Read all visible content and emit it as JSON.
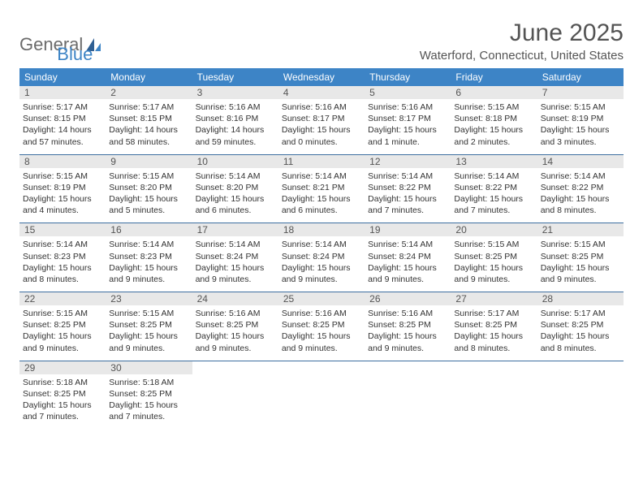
{
  "brand": {
    "general": "General",
    "blue": "Blue"
  },
  "title": "June 2025",
  "location": "Waterford, Connecticut, United States",
  "colors": {
    "header_bg": "#3d84c6",
    "row_border": "#3d6fa0",
    "daynum_bg": "#e8e8e8",
    "text": "#333333",
    "title_text": "#545454"
  },
  "weekdays": [
    "Sunday",
    "Monday",
    "Tuesday",
    "Wednesday",
    "Thursday",
    "Friday",
    "Saturday"
  ],
  "weeks": [
    [
      {
        "n": "1",
        "sr": "Sunrise: 5:17 AM",
        "ss": "Sunset: 8:15 PM",
        "d1": "Daylight: 14 hours",
        "d2": "and 57 minutes."
      },
      {
        "n": "2",
        "sr": "Sunrise: 5:17 AM",
        "ss": "Sunset: 8:15 PM",
        "d1": "Daylight: 14 hours",
        "d2": "and 58 minutes."
      },
      {
        "n": "3",
        "sr": "Sunrise: 5:16 AM",
        "ss": "Sunset: 8:16 PM",
        "d1": "Daylight: 14 hours",
        "d2": "and 59 minutes."
      },
      {
        "n": "4",
        "sr": "Sunrise: 5:16 AM",
        "ss": "Sunset: 8:17 PM",
        "d1": "Daylight: 15 hours",
        "d2": "and 0 minutes."
      },
      {
        "n": "5",
        "sr": "Sunrise: 5:16 AM",
        "ss": "Sunset: 8:17 PM",
        "d1": "Daylight: 15 hours",
        "d2": "and 1 minute."
      },
      {
        "n": "6",
        "sr": "Sunrise: 5:15 AM",
        "ss": "Sunset: 8:18 PM",
        "d1": "Daylight: 15 hours",
        "d2": "and 2 minutes."
      },
      {
        "n": "7",
        "sr": "Sunrise: 5:15 AM",
        "ss": "Sunset: 8:19 PM",
        "d1": "Daylight: 15 hours",
        "d2": "and 3 minutes."
      }
    ],
    [
      {
        "n": "8",
        "sr": "Sunrise: 5:15 AM",
        "ss": "Sunset: 8:19 PM",
        "d1": "Daylight: 15 hours",
        "d2": "and 4 minutes."
      },
      {
        "n": "9",
        "sr": "Sunrise: 5:15 AM",
        "ss": "Sunset: 8:20 PM",
        "d1": "Daylight: 15 hours",
        "d2": "and 5 minutes."
      },
      {
        "n": "10",
        "sr": "Sunrise: 5:14 AM",
        "ss": "Sunset: 8:20 PM",
        "d1": "Daylight: 15 hours",
        "d2": "and 6 minutes."
      },
      {
        "n": "11",
        "sr": "Sunrise: 5:14 AM",
        "ss": "Sunset: 8:21 PM",
        "d1": "Daylight: 15 hours",
        "d2": "and 6 minutes."
      },
      {
        "n": "12",
        "sr": "Sunrise: 5:14 AM",
        "ss": "Sunset: 8:22 PM",
        "d1": "Daylight: 15 hours",
        "d2": "and 7 minutes."
      },
      {
        "n": "13",
        "sr": "Sunrise: 5:14 AM",
        "ss": "Sunset: 8:22 PM",
        "d1": "Daylight: 15 hours",
        "d2": "and 7 minutes."
      },
      {
        "n": "14",
        "sr": "Sunrise: 5:14 AM",
        "ss": "Sunset: 8:22 PM",
        "d1": "Daylight: 15 hours",
        "d2": "and 8 minutes."
      }
    ],
    [
      {
        "n": "15",
        "sr": "Sunrise: 5:14 AM",
        "ss": "Sunset: 8:23 PM",
        "d1": "Daylight: 15 hours",
        "d2": "and 8 minutes."
      },
      {
        "n": "16",
        "sr": "Sunrise: 5:14 AM",
        "ss": "Sunset: 8:23 PM",
        "d1": "Daylight: 15 hours",
        "d2": "and 9 minutes."
      },
      {
        "n": "17",
        "sr": "Sunrise: 5:14 AM",
        "ss": "Sunset: 8:24 PM",
        "d1": "Daylight: 15 hours",
        "d2": "and 9 minutes."
      },
      {
        "n": "18",
        "sr": "Sunrise: 5:14 AM",
        "ss": "Sunset: 8:24 PM",
        "d1": "Daylight: 15 hours",
        "d2": "and 9 minutes."
      },
      {
        "n": "19",
        "sr": "Sunrise: 5:14 AM",
        "ss": "Sunset: 8:24 PM",
        "d1": "Daylight: 15 hours",
        "d2": "and 9 minutes."
      },
      {
        "n": "20",
        "sr": "Sunrise: 5:15 AM",
        "ss": "Sunset: 8:25 PM",
        "d1": "Daylight: 15 hours",
        "d2": "and 9 minutes."
      },
      {
        "n": "21",
        "sr": "Sunrise: 5:15 AM",
        "ss": "Sunset: 8:25 PM",
        "d1": "Daylight: 15 hours",
        "d2": "and 9 minutes."
      }
    ],
    [
      {
        "n": "22",
        "sr": "Sunrise: 5:15 AM",
        "ss": "Sunset: 8:25 PM",
        "d1": "Daylight: 15 hours",
        "d2": "and 9 minutes."
      },
      {
        "n": "23",
        "sr": "Sunrise: 5:15 AM",
        "ss": "Sunset: 8:25 PM",
        "d1": "Daylight: 15 hours",
        "d2": "and 9 minutes."
      },
      {
        "n": "24",
        "sr": "Sunrise: 5:16 AM",
        "ss": "Sunset: 8:25 PM",
        "d1": "Daylight: 15 hours",
        "d2": "and 9 minutes."
      },
      {
        "n": "25",
        "sr": "Sunrise: 5:16 AM",
        "ss": "Sunset: 8:25 PM",
        "d1": "Daylight: 15 hours",
        "d2": "and 9 minutes."
      },
      {
        "n": "26",
        "sr": "Sunrise: 5:16 AM",
        "ss": "Sunset: 8:25 PM",
        "d1": "Daylight: 15 hours",
        "d2": "and 9 minutes."
      },
      {
        "n": "27",
        "sr": "Sunrise: 5:17 AM",
        "ss": "Sunset: 8:25 PM",
        "d1": "Daylight: 15 hours",
        "d2": "and 8 minutes."
      },
      {
        "n": "28",
        "sr": "Sunrise: 5:17 AM",
        "ss": "Sunset: 8:25 PM",
        "d1": "Daylight: 15 hours",
        "d2": "and 8 minutes."
      }
    ],
    [
      {
        "n": "29",
        "sr": "Sunrise: 5:18 AM",
        "ss": "Sunset: 8:25 PM",
        "d1": "Daylight: 15 hours",
        "d2": "and 7 minutes."
      },
      {
        "n": "30",
        "sr": "Sunrise: 5:18 AM",
        "ss": "Sunset: 8:25 PM",
        "d1": "Daylight: 15 hours",
        "d2": "and 7 minutes."
      },
      null,
      null,
      null,
      null,
      null
    ]
  ]
}
